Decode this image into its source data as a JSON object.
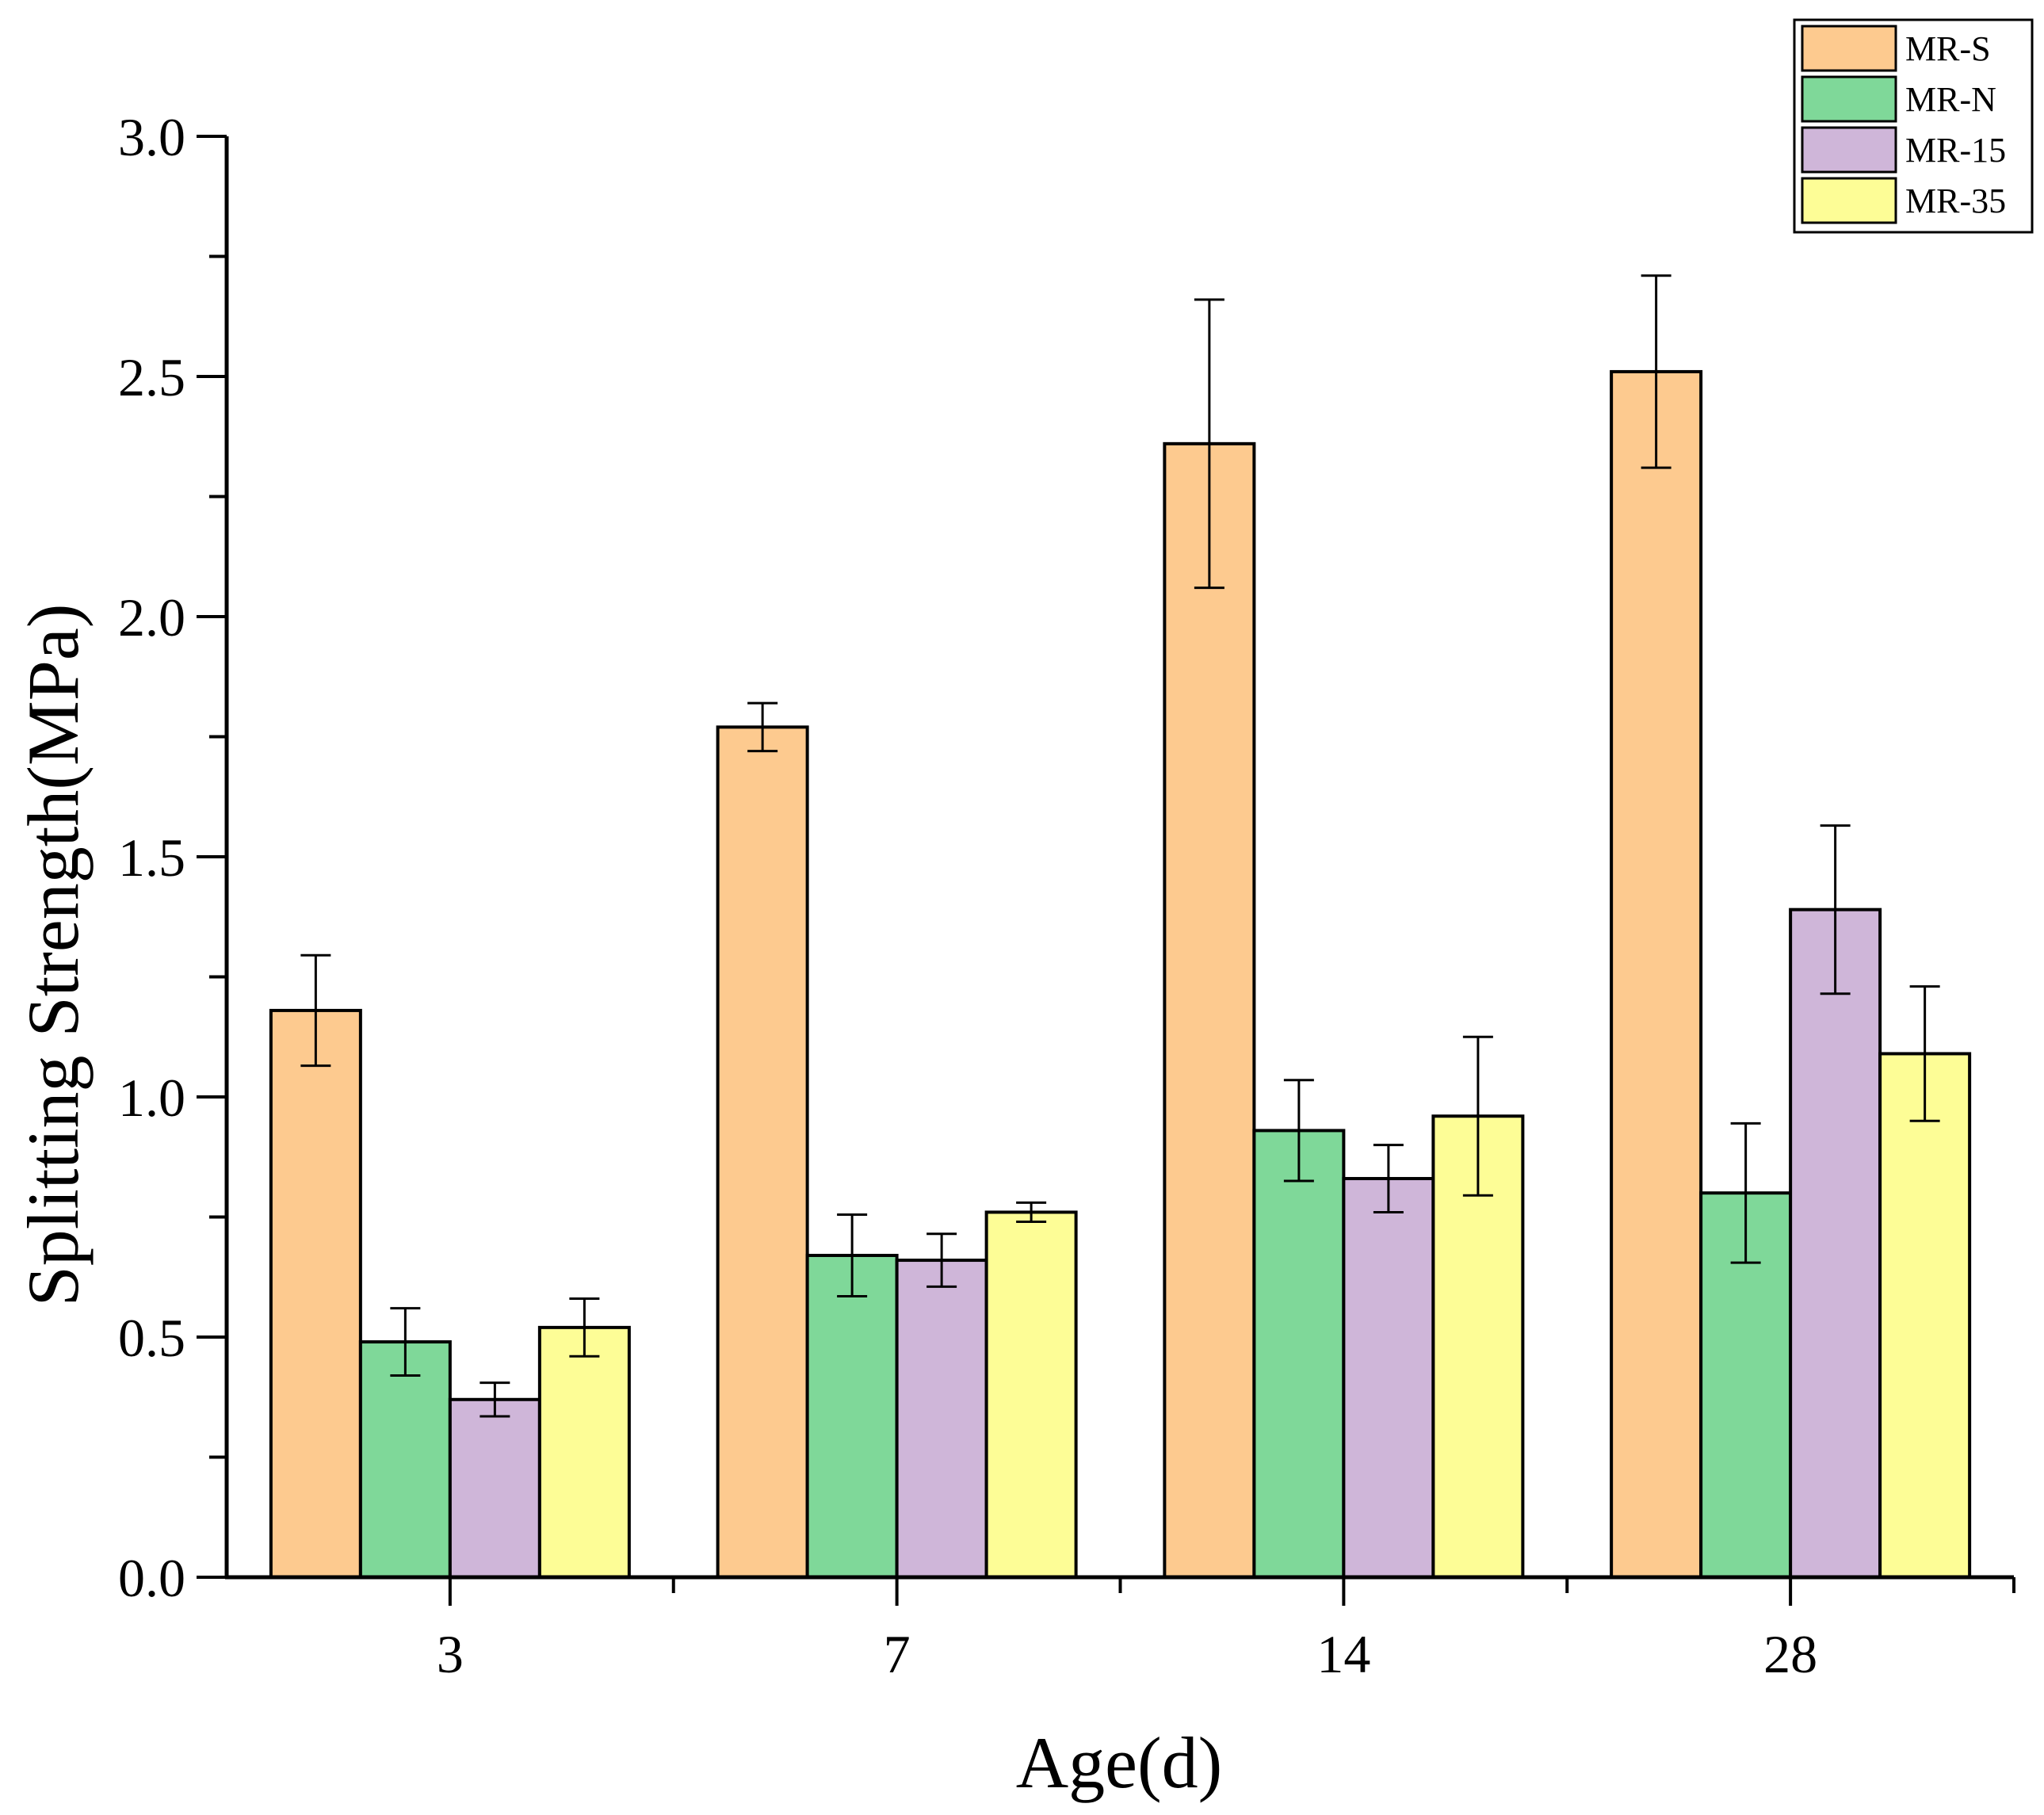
{
  "chart_data": {
    "type": "bar",
    "title": "",
    "xlabel": "Age(d)",
    "ylabel": "Splitting Strength(MPa)",
    "categories": [
      "3",
      "7",
      "14",
      "28"
    ],
    "ylim": [
      0,
      3.0
    ],
    "yticks": [
      0.0,
      0.5,
      1.0,
      1.5,
      2.0,
      2.5,
      3.0
    ],
    "ytick_labels": [
      "0.0",
      "0.5",
      "1.0",
      "1.5",
      "2.0",
      "2.5",
      "3.0"
    ],
    "grid": false,
    "legend_position": "top-right",
    "series": [
      {
        "name": "MR-S",
        "color": "#FDCA8F",
        "values": [
          1.18,
          1.77,
          2.36,
          2.51
        ],
        "errors": [
          0.115,
          0.05,
          0.3,
          0.2
        ]
      },
      {
        "name": "MR-N",
        "color": "#7FD899",
        "values": [
          0.49,
          0.67,
          0.93,
          0.8
        ],
        "errors": [
          0.07,
          0.085,
          0.105,
          0.145
        ]
      },
      {
        "name": "MR-15",
        "color": "#CFB6D9",
        "values": [
          0.37,
          0.66,
          0.83,
          1.39
        ],
        "errors": [
          0.035,
          0.055,
          0.07,
          0.175
        ]
      },
      {
        "name": "MR-35",
        "color": "#FDFD96",
        "values": [
          0.52,
          0.76,
          0.96,
          1.09
        ],
        "errors": [
          0.06,
          0.02,
          0.165,
          0.14
        ]
      }
    ]
  }
}
